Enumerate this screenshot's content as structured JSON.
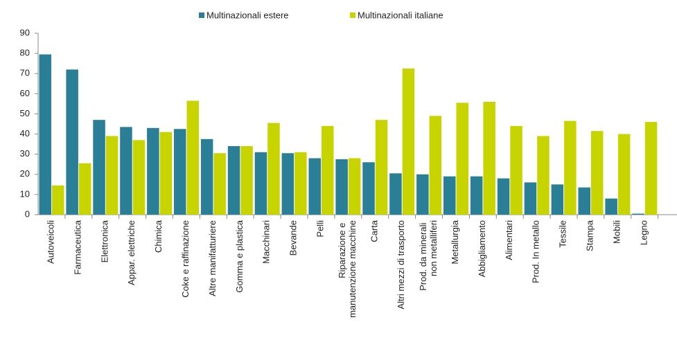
{
  "chart_data": {
    "type": "bar",
    "categories": [
      "Autoveicoli",
      "Farmaceutica",
      "Elettronica",
      "Appar. elettriche",
      "Chimica",
      "Coke e raffinazione",
      "Altre manifatturiere",
      "Gomma e plastica",
      "Macchinari",
      "Bevande",
      "Pelli",
      "Riparazione e manutenzione macchine",
      "Carta",
      "Altri mezzi di trasporto",
      "Prod. da minerali non metalliferi",
      "Metallurgia",
      "Abbigliamento",
      "Alimentari",
      "Prod. In metallo",
      "Tessile",
      "Stampa",
      "Mobili",
      "Legno"
    ],
    "series": [
      {
        "name": "Multinazionali estere",
        "color": "#2a7f96",
        "values": [
          79.5,
          72,
          47,
          43.5,
          43,
          42.5,
          37.5,
          34,
          31,
          30.5,
          28,
          27.5,
          26,
          20.5,
          20,
          19,
          19,
          18,
          16,
          15,
          13.5,
          8,
          0.5
        ]
      },
      {
        "name": "Multinazionali italiane",
        "color": "#c8d400",
        "values": [
          14.5,
          25.5,
          39,
          37,
          41,
          56.5,
          30.5,
          34,
          45.5,
          31,
          44,
          28,
          47,
          72.5,
          49,
          55.5,
          56,
          44,
          39,
          46.5,
          41.5,
          40,
          46
        ]
      }
    ],
    "ylim": [
      0,
      90
    ],
    "yticks": [
      0,
      10,
      20,
      30,
      40,
      50,
      60,
      70,
      80,
      90
    ],
    "grid": false,
    "legend": "top"
  }
}
